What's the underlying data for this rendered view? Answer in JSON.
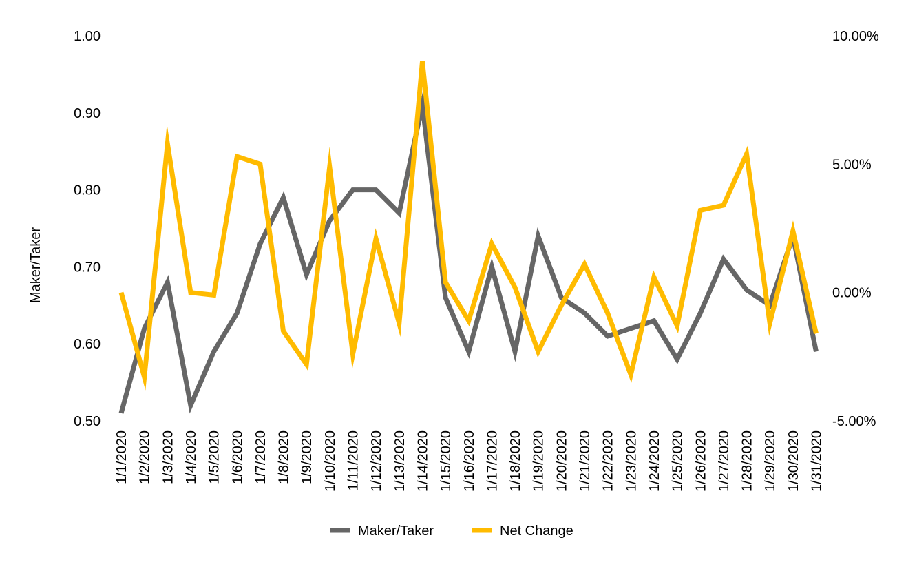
{
  "chart_data": {
    "type": "line",
    "ylabel": "Maker/Taker",
    "categories": [
      "1/1/2020",
      "1/2/2020",
      "1/3/2020",
      "1/4/2020",
      "1/5/2020",
      "1/6/2020",
      "1/7/2020",
      "1/8/2020",
      "1/9/2020",
      "1/10/2020",
      "1/11/2020",
      "1/12/2020",
      "1/13/2020",
      "1/14/2020",
      "1/15/2020",
      "1/16/2020",
      "1/17/2020",
      "1/18/2020",
      "1/19/2020",
      "1/20/2020",
      "1/21/2020",
      "1/22/2020",
      "1/23/2020",
      "1/24/2020",
      "1/25/2020",
      "1/26/2020",
      "1/27/2020",
      "1/28/2020",
      "1/29/2020",
      "1/30/2020",
      "1/31/2020"
    ],
    "y_left": {
      "range": [
        0.5,
        1.0
      ],
      "ticks": [
        "0.50",
        "0.60",
        "0.70",
        "0.80",
        "0.90",
        "1.00"
      ],
      "tick_values": [
        0.5,
        0.6,
        0.7,
        0.8,
        0.9,
        1.0
      ]
    },
    "y_right": {
      "range": [
        -5.0,
        10.0
      ],
      "unit": "%",
      "ticks": [
        "-5.00%",
        "0.00%",
        "5.00%",
        "10.00%"
      ],
      "tick_values": [
        -5,
        0,
        5,
        10
      ]
    },
    "grid": false,
    "legend_position": "bottom",
    "series": [
      {
        "name": "Maker/Taker",
        "axis": "left",
        "color": "#666666",
        "values": [
          0.51,
          0.62,
          0.68,
          0.52,
          0.59,
          0.64,
          0.73,
          0.79,
          0.69,
          0.76,
          0.8,
          0.8,
          0.77,
          0.91,
          0.66,
          0.59,
          0.7,
          0.59,
          0.74,
          0.66,
          0.64,
          0.61,
          0.62,
          0.63,
          0.58,
          0.64,
          0.71,
          0.67,
          0.65,
          0.74,
          0.59
        ]
      },
      {
        "name": "Net Change",
        "axis": "right",
        "color": "#FFBB00",
        "values": [
          0.0,
          -3.3,
          5.8,
          0.0,
          -0.1,
          5.3,
          5.0,
          -1.5,
          -2.8,
          4.9,
          -2.4,
          2.1,
          -1.2,
          9.0,
          0.4,
          -1.1,
          1.9,
          0.2,
          -2.3,
          -0.5,
          1.1,
          -0.8,
          -3.2,
          0.6,
          -1.3,
          3.2,
          3.4,
          5.4,
          -1.2,
          2.4,
          -1.6
        ]
      }
    ]
  }
}
